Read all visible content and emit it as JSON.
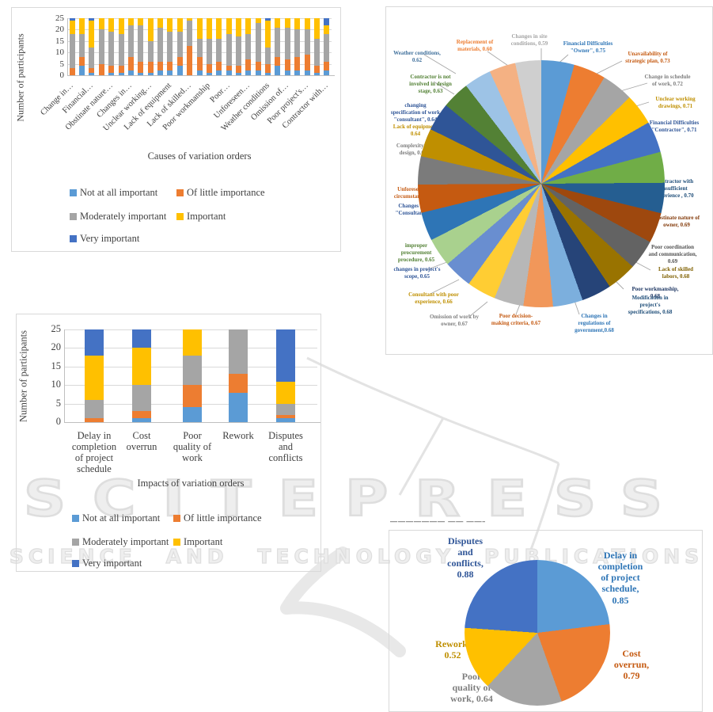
{
  "watermark": {
    "title": "SCITEPRESS",
    "subtitle": "SCIENCE AND TECHNOLOGY PUBLICATIONS"
  },
  "clipped_caption": "———————  ——  ———————",
  "legend": {
    "items": [
      "Not at all important",
      "Of little importance",
      "Moderately important",
      "Important",
      "Very important"
    ],
    "colors": [
      "#5B9BD5",
      "#ED7D31",
      "#A5A5A5",
      "#FFC000",
      "#4472C4"
    ]
  },
  "chart_data": [
    {
      "id": "causes-bar",
      "type": "bar",
      "stacked": true,
      "title": "",
      "xlabel": "Causes of variation orders",
      "ylabel": "Number of participants",
      "ylim": [
        0,
        25
      ],
      "yticks": [
        0,
        5,
        10,
        15,
        20,
        25
      ],
      "grid": true,
      "legend_position": "bottom",
      "legend": [
        "Not at all important",
        "Of little importance",
        "Moderately important",
        "Important",
        "Very important"
      ],
      "x_tick_labels": [
        "Change in…",
        "Financial…",
        "Obstinate nature…",
        "Changes in…",
        "Unclear working…",
        "Lack of equipment",
        "Lack of skilled…",
        "Poor workmanship",
        "Poor…",
        "Unforeseen…",
        "Weather conditions",
        "Omission of…",
        "Poor project's…",
        "Contractor with…"
      ],
      "series": [
        {
          "name": "Not at all important",
          "values": [
            0,
            4,
            1,
            0,
            1,
            1,
            2,
            1,
            1,
            2,
            2,
            4,
            0,
            2,
            1,
            2,
            2,
            1,
            2,
            2,
            1,
            4,
            2,
            2,
            2,
            1,
            2
          ]
        },
        {
          "name": "Of little importance",
          "values": [
            3,
            4,
            2,
            5,
            3,
            3,
            6,
            5,
            5,
            4,
            4,
            4,
            13,
            6,
            4,
            4,
            2,
            3,
            5,
            4,
            4,
            4,
            5,
            6,
            7,
            3,
            4
          ]
        },
        {
          "name": "Moderately important",
          "values": [
            15,
            10,
            9,
            15,
            15,
            14,
            14,
            16,
            9,
            15,
            13,
            11,
            11,
            8,
            11,
            10,
            14,
            13,
            11,
            17,
            7,
            13,
            14,
            12,
            11,
            12,
            12
          ]
        },
        {
          "name": "Important",
          "values": [
            6,
            7,
            12,
            5,
            6,
            7,
            3,
            3,
            10,
            4,
            6,
            6,
            1,
            9,
            9,
            9,
            7,
            8,
            7,
            2,
            12,
            4,
            4,
            5,
            5,
            9,
            4
          ]
        },
        {
          "name": "Very important",
          "values": [
            1,
            0,
            1,
            0,
            0,
            0,
            0,
            0,
            0,
            0,
            0,
            0,
            0,
            0,
            0,
            0,
            0,
            0,
            0,
            0,
            1,
            0,
            0,
            0,
            0,
            0,
            3
          ]
        }
      ]
    },
    {
      "id": "causes-pie",
      "type": "pie",
      "start_angle_deg": 0,
      "slices": [
        {
          "label": "Financial Difficulties \"Owner\"",
          "value": 0.75,
          "color": "#5B9BD5",
          "label_color": "#2E75B6",
          "lines": [
            "Financial Difficulties",
            "\"Owner\", 0.75"
          ]
        },
        {
          "label": "Unavailability of strategic plan",
          "value": 0.73,
          "color": "#ED7D31",
          "label_color": "#C55A11",
          "lines": [
            "Unavailability of",
            "strategic plan, 0.73"
          ]
        },
        {
          "label": "Change in schedule of work",
          "value": 0.72,
          "color": "#A5A5A5",
          "label_color": "#7F7F7F",
          "lines": [
            "Change in schedule",
            "of work, 0.72"
          ]
        },
        {
          "label": "Unclear working drawings",
          "value": 0.71,
          "color": "#FFC000",
          "label_color": "#BF8F00",
          "lines": [
            "Unclear working",
            "drawings, 0.71"
          ]
        },
        {
          "label": "Financial Difficulties \"Contractor\"",
          "value": 0.71,
          "color": "#4472C4",
          "label_color": "#2F5597",
          "lines": [
            "Financial Difficulties",
            "\"Contractor\", 0.71"
          ]
        },
        {
          "label": "Contractor with insufficient experience",
          "value": 0.7,
          "color": "#70AD47",
          "label_color": "#1F4E79",
          "lines": [
            "Contractor with",
            "insufficient",
            "experience , 0.70"
          ]
        },
        {
          "label": "Obstinate nature of owner",
          "value": 0.69,
          "color": "#255E91",
          "label_color": "#843C0C",
          "lines": [
            "Obstinate nature of",
            "owner, 0.69"
          ]
        },
        {
          "label": "Poor coordination and communication",
          "value": 0.69,
          "color": "#9E480E",
          "label_color": "#525252",
          "lines": [
            "Poor coordination",
            "and communication,",
            "0.69"
          ]
        },
        {
          "label": "Lack of skilled labors",
          "value": 0.68,
          "color": "#636363",
          "label_color": "#7F6000",
          "lines": [
            "Lack of skilled",
            "labors, 0.68"
          ]
        },
        {
          "label": "Poor workmanship",
          "value": 0.68,
          "color": "#997300",
          "label_color": "#1F3864",
          "lines": [
            "Poor workmanship,",
            "0.68"
          ]
        },
        {
          "label": "Modification in project's specifications",
          "value": 0.68,
          "color": "#264478",
          "label_color": "#1F4E79",
          "lines": [
            "Modification in",
            "project's",
            "specifications, 0.68"
          ]
        },
        {
          "label": "Changes in regulations of government",
          "value": 0.68,
          "color": "#7CAFDD",
          "label_color": "#2E75B6",
          "lines": [
            "Changes in",
            "regulations of",
            "government,0.68"
          ]
        },
        {
          "label": "Poor decision-making criteria",
          "value": 0.67,
          "color": "#F1975A",
          "label_color": "#C45911",
          "lines": [
            "Poor decision-",
            "making criteria, 0.67"
          ]
        },
        {
          "label": "Omission of work by owner",
          "value": 0.67,
          "color": "#B7B7B7",
          "label_color": "#7F7F7F",
          "lines": [
            "Omission of work by",
            "owner, 0.67"
          ]
        },
        {
          "label": "Consultant with poor experience",
          "value": 0.66,
          "color": "#FFCD33",
          "label_color": "#BF8F00",
          "lines": [
            "Consultant with poor",
            "experience, 0.66"
          ]
        },
        {
          "label": "changes in project's scope",
          "value": 0.65,
          "color": "#698ED0",
          "label_color": "#2F5597",
          "lines": [
            "changes in project's",
            "scope, 0.65"
          ]
        },
        {
          "label": "improper procurement procedure",
          "value": 0.65,
          "color": "#A9D18E",
          "label_color": "#538135",
          "lines": [
            "improper",
            "procurement",
            "procedure, 0.65"
          ]
        },
        {
          "label": "Changes in \"Consultant\"",
          "value": 0.65,
          "color": "#2E75B6",
          "label_color": "#2F5597",
          "lines": [
            "Changes in",
            "\"Consultant\""
          ]
        },
        {
          "label": "Unforeseen circumstances",
          "value": 0.64,
          "color": "#C55A11",
          "label_color": "#C45911",
          "lines": [
            "Unforeseen",
            "circumstances"
          ]
        },
        {
          "label": "Complexity of design",
          "value": 0.64,
          "color": "#7B7B7B",
          "label_color": "#7F7F7F",
          "lines": [
            "Complexity of",
            "design, 0.64"
          ]
        },
        {
          "label": "Lack of equipment",
          "value": 0.64,
          "color": "#BF8F00",
          "label_color": "#BF8F00",
          "lines": [
            "Lack of equipment",
            "0.64"
          ]
        },
        {
          "label": "changing specification of work \"consultant\"",
          "value": 0.64,
          "color": "#2F5597",
          "label_color": "#2F5597",
          "lines": [
            "changing",
            "specification of work",
            "\"consultant\", 0.64"
          ]
        },
        {
          "label": "Contractor is not involved in design stage",
          "value": 0.63,
          "color": "#538135",
          "label_color": "#538135",
          "lines": [
            "Contractor is not",
            "involved in design",
            "stage, 0.63"
          ]
        },
        {
          "label": "Weather conditions",
          "value": 0.62,
          "color": "#9DC3E6",
          "label_color": "#41719C",
          "lines": [
            "Weather conditions,",
            "0.62"
          ]
        },
        {
          "label": "Replacement of materials",
          "value": 0.6,
          "color": "#F4B183",
          "label_color": "#ED7D31",
          "lines": [
            "Replacement of",
            "materials, 0.60"
          ]
        },
        {
          "label": "Changes in site conditions",
          "value": 0.59,
          "color": "#CFCFCF",
          "label_color": "#A5A5A5",
          "lines": [
            "Changes in site",
            "conditions, 0.59"
          ]
        }
      ]
    },
    {
      "id": "impacts-bar",
      "type": "bar",
      "stacked": true,
      "title": "",
      "xlabel": "Impacts of variation orders",
      "ylabel": "Number of participants",
      "ylim": [
        0,
        25
      ],
      "yticks": [
        0,
        5,
        10,
        15,
        20,
        25
      ],
      "grid": true,
      "legend_position": "bottom",
      "legend": [
        "Not at all important",
        "Of little importance",
        "Moderately important",
        "Important",
        "Very important"
      ],
      "categories": [
        "Delay in completion of project schedule",
        "Cost overrun",
        "Poor quality of work",
        "Rework",
        "Disputes and conflicts"
      ],
      "category_lines": [
        [
          "Delay in",
          "completion",
          "of project",
          "schedule"
        ],
        [
          "Cost",
          "overrun"
        ],
        [
          "Poor",
          "quality of",
          "work"
        ],
        [
          "Rework"
        ],
        [
          "Disputes",
          "and",
          "conflicts"
        ]
      ],
      "series": [
        {
          "name": "Not at all important",
          "values": [
            0,
            1,
            4,
            8,
            1
          ]
        },
        {
          "name": "Of little importance",
          "values": [
            1,
            2,
            6,
            5,
            1
          ]
        },
        {
          "name": "Moderately important",
          "values": [
            5,
            7,
            8,
            12,
            3
          ]
        },
        {
          "name": "Important",
          "values": [
            12,
            10,
            7,
            0,
            6
          ]
        },
        {
          "name": "Very important",
          "values": [
            7,
            5,
            0,
            0,
            14
          ]
        }
      ]
    },
    {
      "id": "impacts-pie",
      "type": "pie",
      "start_angle_deg": 0,
      "slices": [
        {
          "label": "Delay in completion of project schedule",
          "value": 0.85,
          "color": "#5B9BD5",
          "label_color": "#2E75B6",
          "lines": [
            "Delay in",
            "completion",
            "of project",
            "schedule,",
            "0.85"
          ]
        },
        {
          "label": "Cost overrun",
          "value": 0.79,
          "color": "#ED7D31",
          "label_color": "#C55A11",
          "lines": [
            "Cost",
            "overrun,",
            "0.79"
          ]
        },
        {
          "label": "Poor quality of work",
          "value": 0.64,
          "color": "#A5A5A5",
          "label_color": "#7F7F7F",
          "lines": [
            "Poor",
            "quality of",
            "work, 0.64"
          ]
        },
        {
          "label": "Rework",
          "value": 0.52,
          "color": "#FFC000",
          "label_color": "#BF8F00",
          "lines": [
            "Rework,",
            "0.52"
          ]
        },
        {
          "label": "Disputes and conflicts",
          "value": 0.88,
          "color": "#4472C4",
          "label_color": "#2F5597",
          "lines": [
            "Disputes",
            "and",
            "conflicts,",
            "0.88"
          ]
        }
      ]
    }
  ]
}
